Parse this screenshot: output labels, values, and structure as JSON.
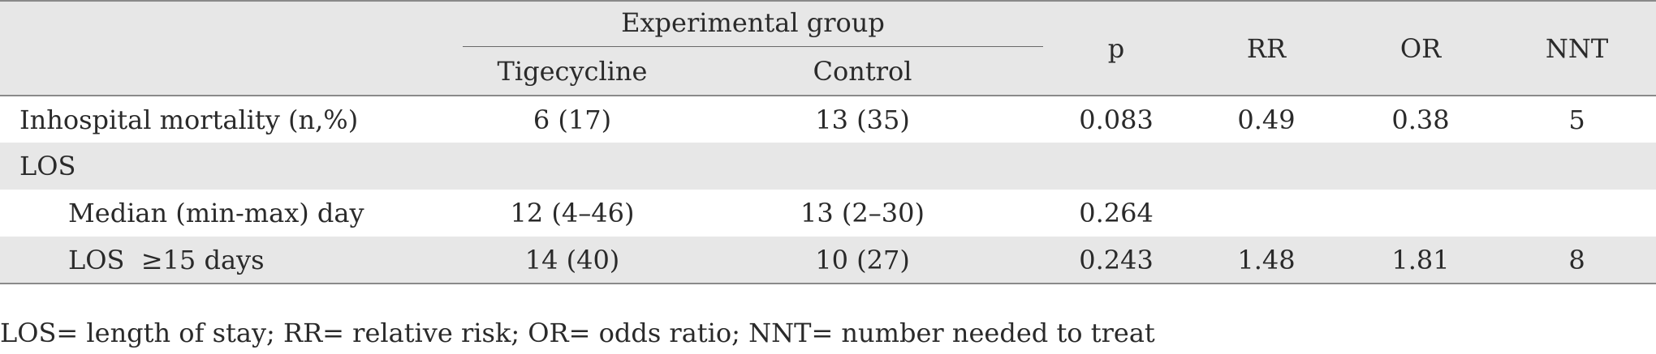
{
  "table": {
    "group_header": "Experimental group",
    "columns": {
      "tigecycline": "Tigecycline",
      "control": "Control",
      "p": "p",
      "rr": "RR",
      "or": "OR",
      "nnt": "NNT"
    },
    "rows": [
      {
        "label": "Inhospital mortality (n,%)",
        "tigecycline": "6 (17)",
        "control": "13 (35)",
        "p": "0.083",
        "rr": "0.49",
        "or": "0.38",
        "nnt": "5"
      },
      {
        "label": "LOS",
        "tigecycline": "",
        "control": "",
        "p": "",
        "rr": "",
        "or": "",
        "nnt": ""
      },
      {
        "label": "Median (min-max) day",
        "tigecycline": "12 (4–46)",
        "control": "13 (2–30)",
        "p": "0.264",
        "rr": "",
        "or": "",
        "nnt": ""
      },
      {
        "label": "LOS  ≥15 days",
        "tigecycline": "14 (40)",
        "control": "10 (27)",
        "p": "0.243",
        "rr": "1.48",
        "or": "1.81",
        "nnt": "8"
      }
    ]
  },
  "footnote": "LOS= length of stay; RR= relative risk; OR= odds ratio; NNT= number needed to treat"
}
